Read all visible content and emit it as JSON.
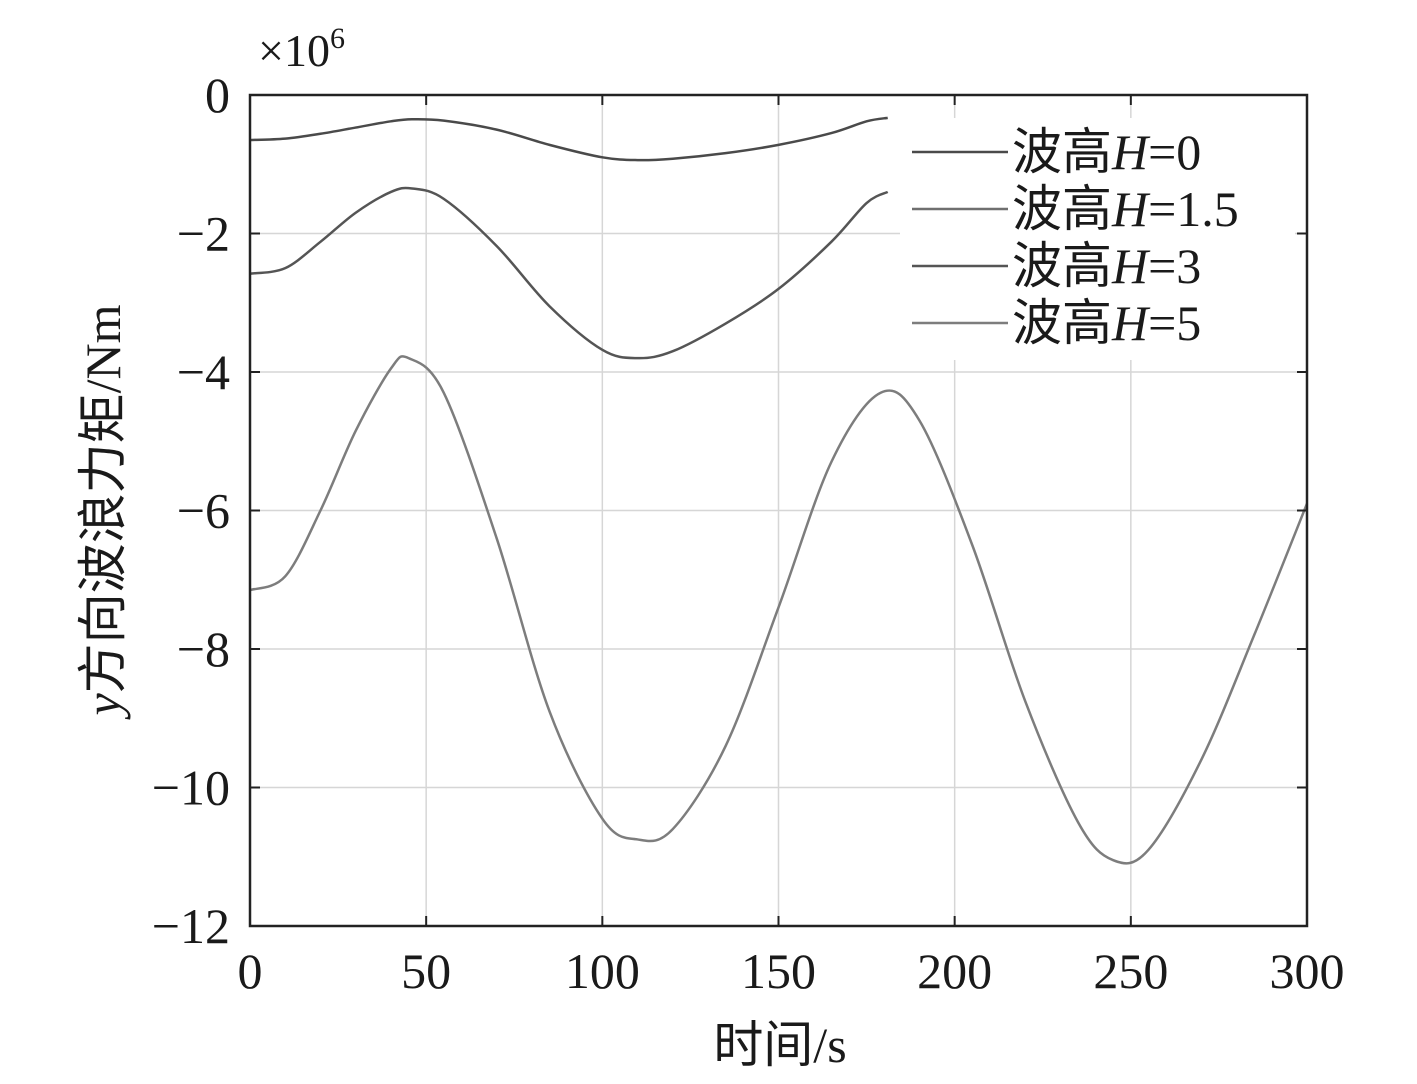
{
  "chart_data": {
    "type": "line",
    "title": "",
    "xlabel": "时间/s",
    "ylabel": "y方向波浪力矩/Nm",
    "ylabel_italic_prefix": "y",
    "ylabel_rest": "方向波浪力矩/Nm",
    "y_multiplier": {
      "base": "×10",
      "exponent": "6"
    },
    "xlim": [
      0,
      300
    ],
    "ylim": [
      -12,
      0
    ],
    "xticks": [
      0,
      50,
      100,
      150,
      200,
      250,
      300
    ],
    "yticks": [
      0,
      -2,
      -4,
      -6,
      -8,
      -10,
      -12
    ],
    "xtick_labels": [
      "0",
      "50",
      "100",
      "150",
      "200",
      "250",
      "300"
    ],
    "ytick_labels": [
      "0",
      "−2",
      "−4",
      "−6",
      "−8",
      "−10",
      "−12"
    ],
    "grid": true,
    "legend_position": "top-right",
    "series": [
      {
        "name": "波高H=0",
        "legend_prefix": "波高",
        "legend_var": "H",
        "legend_suffix": "=0",
        "color": "#4a4a4a",
        "x": [
          0,
          10,
          20,
          30,
          40,
          46,
          55,
          70,
          85,
          100,
          110,
          120,
          135,
          150,
          165,
          175,
          181
        ],
        "values": [
          -0.65,
          -0.63,
          -0.56,
          -0.47,
          -0.38,
          -0.35,
          -0.37,
          -0.5,
          -0.72,
          -0.9,
          -0.94,
          -0.92,
          -0.84,
          -0.72,
          -0.55,
          -0.38,
          -0.33
        ]
      },
      {
        "name": "波高H=1.5",
        "legend_prefix": "波高",
        "legend_var": "H",
        "legend_suffix": "=1.5",
        "color": "#6f6f6f",
        "x": [],
        "values": []
      },
      {
        "name": "波高H=3",
        "legend_prefix": "波高",
        "legend_var": "H",
        "legend_suffix": "=3",
        "color": "#555555",
        "x": [
          0,
          10,
          20,
          30,
          40,
          46,
          55,
          70,
          85,
          100,
          110,
          120,
          135,
          150,
          165,
          175,
          181
        ],
        "values": [
          -2.58,
          -2.5,
          -2.12,
          -1.7,
          -1.4,
          -1.35,
          -1.5,
          -2.18,
          -3.05,
          -3.68,
          -3.8,
          -3.7,
          -3.3,
          -2.8,
          -2.12,
          -1.56,
          -1.4
        ]
      },
      {
        "name": "波高H=5",
        "legend_prefix": "波高",
        "legend_var": "H",
        "legend_suffix": "=5",
        "color": "#7d7d7d",
        "x": [
          0,
          10,
          20,
          30,
          40,
          45,
          55,
          70,
          85,
          100,
          110,
          120,
          135,
          150,
          165,
          179,
          190,
          205,
          220,
          235,
          245,
          255,
          270,
          285,
          300
        ],
        "values": [
          -7.15,
          -6.95,
          -6.0,
          -4.85,
          -3.95,
          -3.8,
          -4.3,
          -6.4,
          -8.9,
          -10.45,
          -10.75,
          -10.6,
          -9.4,
          -7.4,
          -5.3,
          -4.3,
          -4.7,
          -6.5,
          -8.75,
          -10.5,
          -11.05,
          -10.9,
          -9.6,
          -7.8,
          -5.9
        ]
      }
    ]
  }
}
